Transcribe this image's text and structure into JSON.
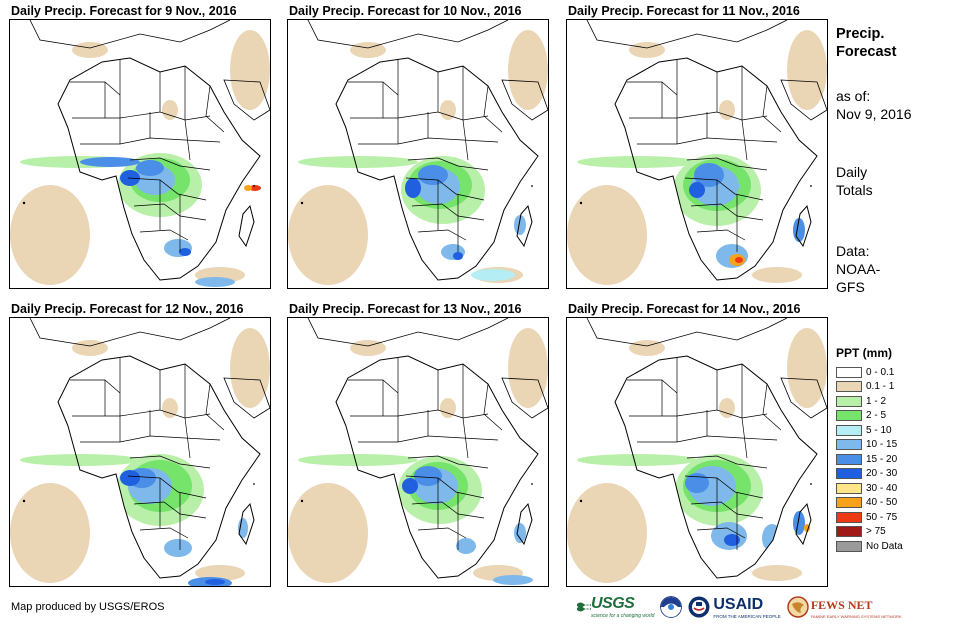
{
  "panels": [
    {
      "title": "Daily Precip. Forecast for 9 Nov., 2016"
    },
    {
      "title": "Daily Precip. Forecast for 10 Nov., 2016"
    },
    {
      "title": "Daily Precip. Forecast for 11 Nov., 2016"
    },
    {
      "title": "Daily Precip. Forecast for 12 Nov., 2016"
    },
    {
      "title": "Daily Precip. Forecast for 13 Nov., 2016"
    },
    {
      "title": "Daily Precip. Forecast for 14 Nov., 2016"
    }
  ],
  "sidebar": {
    "title_line1": "Precip.",
    "title_line2": "Forecast",
    "asof_line1": "as of:",
    "asof_line2": "Nov 9, 2016",
    "totals_line1": "Daily",
    "totals_line2": "Totals",
    "data_line1": "Data:",
    "data_line2": "NOAA-",
    "data_line3": "GFS"
  },
  "legend": {
    "title": "PPT (mm)",
    "items": [
      {
        "label": "0 - 0.1",
        "color": "#ffffff"
      },
      {
        "label": "0.1 - 1",
        "color": "#ead5b5"
      },
      {
        "label": "1 - 2",
        "color": "#b9f0a9"
      },
      {
        "label": "2 - 5",
        "color": "#76e36b"
      },
      {
        "label": "5 - 10",
        "color": "#b4eef4"
      },
      {
        "label": "10 - 15",
        "color": "#7fb8ea"
      },
      {
        "label": "15 - 20",
        "color": "#4a8ee8"
      },
      {
        "label": "20 - 30",
        "color": "#1f5fe0"
      },
      {
        "label": "30 - 40",
        "color": "#fde68a"
      },
      {
        "label": "40 - 50",
        "color": "#f6a21a"
      },
      {
        "label": "50 - 75",
        "color": "#ee3a14"
      },
      {
        "label": "> 75",
        "color": "#a11a1a"
      },
      {
        "label": "No Data",
        "color": "#9a9a9a"
      }
    ]
  },
  "credit": "Map produced by USGS/EROS",
  "logos": {
    "usgs": "USGS",
    "usgs_tagline": "science for a changing world",
    "usaid": "USAID",
    "usaid_tagline": "FROM THE AMERICAN PEOPLE",
    "fews": "FEWS NET",
    "fews_tagline": "FAMINE EARLY WARNING SYSTEMS NETWORK"
  }
}
